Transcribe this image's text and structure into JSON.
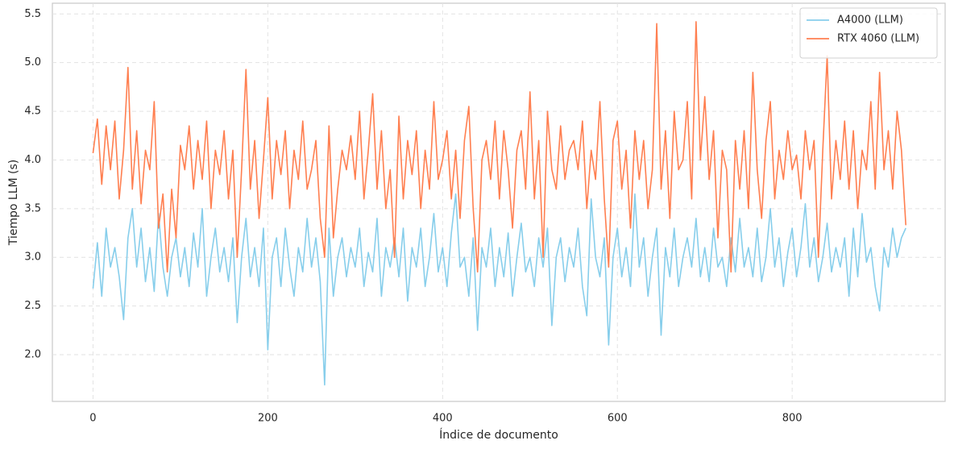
{
  "chart_data": {
    "type": "line",
    "xlabel": "Índice de documento",
    "ylabel": "Tiempo LLM (s)",
    "x": [
      0,
      5,
      10,
      15,
      20,
      25,
      30,
      35,
      40,
      45,
      50,
      55,
      60,
      65,
      70,
      75,
      80,
      85,
      90,
      95,
      100,
      105,
      110,
      115,
      120,
      125,
      130,
      135,
      140,
      145,
      150,
      155,
      160,
      165,
      170,
      175,
      180,
      185,
      190,
      195,
      200,
      205,
      210,
      215,
      220,
      225,
      230,
      235,
      240,
      245,
      250,
      255,
      260,
      265,
      270,
      275,
      280,
      285,
      290,
      295,
      300,
      305,
      310,
      315,
      320,
      325,
      330,
      335,
      340,
      345,
      350,
      355,
      360,
      365,
      370,
      375,
      380,
      385,
      390,
      395,
      400,
      405,
      410,
      415,
      420,
      425,
      430,
      435,
      440,
      445,
      450,
      455,
      460,
      465,
      470,
      475,
      480,
      485,
      490,
      495,
      500,
      505,
      510,
      515,
      520,
      525,
      530,
      535,
      540,
      545,
      550,
      555,
      560,
      565,
      570,
      575,
      580,
      585,
      590,
      595,
      600,
      605,
      610,
      615,
      620,
      625,
      630,
      635,
      640,
      645,
      650,
      655,
      660,
      665,
      670,
      675,
      680,
      685,
      690,
      695,
      700,
      705,
      710,
      715,
      720,
      725,
      730,
      735,
      740,
      745,
      750,
      755,
      760,
      765,
      770,
      775,
      780,
      785,
      790,
      795,
      800,
      805,
      810,
      815,
      820,
      825,
      830,
      835,
      840,
      845,
      850,
      855,
      860,
      865,
      870,
      875,
      880,
      885,
      890,
      895,
      900,
      905,
      910,
      915,
      920,
      925,
      930
    ],
    "series": [
      {
        "name": "A4000 (LLM)",
        "color": "#87ceeb",
        "values": [
          2.68,
          3.15,
          2.6,
          3.3,
          2.9,
          3.1,
          2.8,
          2.36,
          3.2,
          3.5,
          2.9,
          3.3,
          2.75,
          3.1,
          2.65,
          3.45,
          2.9,
          2.6,
          3.0,
          3.2,
          2.8,
          3.1,
          2.7,
          3.25,
          2.9,
          3.5,
          2.6,
          3.0,
          3.3,
          2.85,
          3.1,
          2.75,
          3.2,
          2.33,
          3.0,
          3.4,
          2.8,
          3.1,
          2.7,
          3.3,
          2.05,
          3.0,
          3.2,
          2.7,
          3.3,
          2.9,
          2.6,
          3.1,
          2.85,
          3.4,
          2.9,
          3.2,
          2.75,
          1.69,
          3.3,
          2.6,
          3.0,
          3.2,
          2.8,
          3.1,
          2.9,
          3.3,
          2.7,
          3.05,
          2.85,
          3.4,
          2.6,
          3.1,
          2.9,
          3.2,
          2.8,
          3.3,
          2.55,
          3.1,
          2.9,
          3.3,
          2.7,
          3.0,
          3.45,
          2.85,
          3.1,
          2.7,
          3.25,
          3.65,
          2.9,
          3.0,
          2.6,
          3.2,
          2.25,
          3.1,
          2.9,
          3.3,
          2.7,
          3.1,
          2.8,
          3.25,
          2.6,
          3.0,
          3.35,
          2.85,
          3.0,
          2.7,
          3.2,
          2.9,
          3.3,
          2.3,
          3.0,
          3.2,
          2.75,
          3.1,
          2.9,
          3.3,
          2.7,
          2.4,
          3.6,
          3.0,
          2.8,
          3.2,
          2.1,
          3.0,
          3.3,
          2.8,
          3.1,
          2.7,
          3.65,
          2.9,
          3.2,
          2.6,
          3.0,
          3.3,
          2.2,
          3.1,
          2.8,
          3.3,
          2.7,
          3.0,
          3.2,
          2.9,
          3.4,
          2.8,
          3.1,
          2.75,
          3.3,
          2.9,
          3.0,
          2.7,
          3.2,
          2.85,
          3.4,
          2.9,
          3.1,
          2.8,
          3.3,
          2.75,
          3.0,
          3.5,
          2.9,
          3.2,
          2.7,
          3.05,
          3.3,
          2.8,
          3.1,
          3.55,
          2.9,
          3.2,
          2.75,
          3.0,
          3.35,
          2.85,
          3.1,
          2.9,
          3.2,
          2.6,
          3.3,
          2.8,
          3.45,
          2.95,
          3.1,
          2.7,
          2.45,
          3.1,
          2.9,
          3.3,
          3.0,
          3.2,
          3.3
        ]
      },
      {
        "name": "RTX 4060 (LLM)",
        "color": "#ff7f50",
        "values": [
          4.07,
          4.42,
          3.75,
          4.35,
          3.9,
          4.4,
          3.6,
          4.1,
          4.95,
          3.7,
          4.3,
          3.55,
          4.1,
          3.9,
          4.6,
          3.3,
          3.65,
          2.85,
          3.7,
          3.2,
          4.15,
          3.9,
          4.35,
          3.7,
          4.2,
          3.8,
          4.4,
          3.5,
          4.1,
          3.85,
          4.3,
          3.6,
          4.1,
          3.0,
          3.9,
          4.93,
          3.7,
          4.2,
          3.4,
          4.0,
          4.64,
          3.6,
          4.2,
          3.85,
          4.3,
          3.5,
          4.1,
          3.8,
          4.4,
          3.7,
          3.9,
          4.2,
          3.4,
          3.0,
          4.35,
          3.2,
          3.7,
          4.1,
          3.9,
          4.25,
          3.8,
          4.5,
          3.6,
          4.1,
          4.68,
          3.7,
          4.3,
          3.5,
          3.9,
          3.0,
          4.45,
          3.6,
          4.2,
          3.85,
          4.3,
          3.5,
          4.1,
          3.7,
          4.6,
          3.8,
          4.0,
          4.3,
          3.6,
          4.1,
          3.4,
          4.2,
          4.55,
          3.5,
          2.85,
          4.0,
          4.2,
          3.8,
          4.4,
          3.6,
          4.3,
          3.9,
          3.3,
          4.1,
          4.3,
          3.7,
          4.7,
          3.6,
          4.2,
          3.0,
          4.5,
          3.9,
          3.7,
          4.35,
          3.8,
          4.1,
          4.2,
          3.9,
          4.4,
          3.5,
          4.1,
          3.8,
          4.6,
          3.6,
          2.9,
          4.2,
          4.4,
          3.7,
          4.1,
          3.3,
          4.3,
          3.8,
          4.2,
          3.5,
          3.9,
          5.4,
          3.7,
          4.3,
          3.4,
          4.5,
          3.9,
          4.0,
          4.6,
          3.6,
          5.42,
          4.0,
          4.65,
          3.8,
          4.3,
          3.2,
          4.1,
          3.9,
          2.85,
          4.2,
          3.7,
          4.3,
          3.5,
          4.9,
          3.9,
          3.4,
          4.2,
          4.6,
          3.6,
          4.1,
          3.8,
          4.3,
          3.9,
          4.05,
          3.6,
          4.3,
          3.9,
          4.2,
          3.0,
          4.1,
          5.07,
          3.6,
          4.2,
          3.8,
          4.4,
          3.7,
          4.3,
          3.5,
          4.1,
          3.9,
          4.6,
          3.7,
          4.9,
          3.9,
          4.3,
          3.7,
          4.5,
          4.1,
          3.33
        ]
      }
    ],
    "xlim": [
      -46.5,
      975
    ],
    "xticks": [
      0,
      200,
      400,
      600,
      800
    ],
    "ylim": [
      1.52,
      5.61
    ],
    "yticks": [
      {
        "value": 2,
        "label": "2.0"
      },
      {
        "value": 2.5,
        "label": "2.5"
      },
      {
        "value": 3,
        "label": "3.0"
      },
      {
        "value": 3.5,
        "label": "3.5"
      },
      {
        "value": 4,
        "label": "4.0"
      },
      {
        "value": 4.5,
        "label": "4.5"
      },
      {
        "value": 5,
        "label": "5.0"
      },
      {
        "value": 5.5,
        "label": "5.5"
      }
    ],
    "grid": true,
    "legend": "upper right"
  }
}
